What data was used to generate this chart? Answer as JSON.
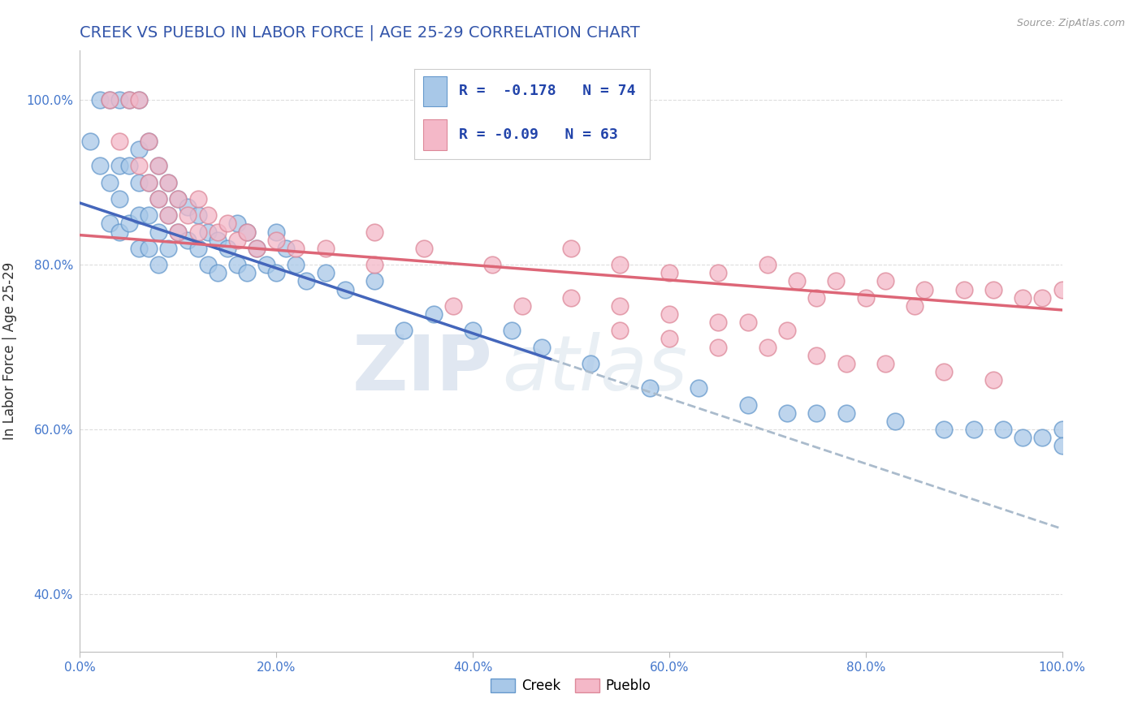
{
  "title": "CREEK VS PUEBLO IN LABOR FORCE | AGE 25-29 CORRELATION CHART",
  "source_text": "Source: ZipAtlas.com",
  "ylabel": "In Labor Force | Age 25-29",
  "background_color": "#ffffff",
  "watermark_zip": "ZIP",
  "watermark_atlas": "atlas",
  "creek_color": "#a8c8e8",
  "pueblo_color": "#f4b8c8",
  "creek_edge_color": "#6699cc",
  "pueblo_edge_color": "#dd8899",
  "creek_line_color": "#4466bb",
  "pueblo_line_color": "#dd6677",
  "dashed_line_color": "#aabbcc",
  "creek_R": -0.178,
  "creek_N": 74,
  "pueblo_R": -0.09,
  "pueblo_N": 63,
  "title_color": "#3355aa",
  "label_color": "#4477cc",
  "grid_color": "#dddddd",
  "creek_x": [
    0.01,
    0.02,
    0.02,
    0.03,
    0.03,
    0.03,
    0.04,
    0.04,
    0.04,
    0.04,
    0.05,
    0.05,
    0.05,
    0.06,
    0.06,
    0.06,
    0.06,
    0.06,
    0.07,
    0.07,
    0.07,
    0.07,
    0.08,
    0.08,
    0.08,
    0.08,
    0.09,
    0.09,
    0.09,
    0.1,
    0.1,
    0.11,
    0.11,
    0.12,
    0.12,
    0.13,
    0.13,
    0.14,
    0.14,
    0.15,
    0.16,
    0.16,
    0.17,
    0.17,
    0.18,
    0.19,
    0.2,
    0.2,
    0.21,
    0.22,
    0.23,
    0.25,
    0.27,
    0.3,
    0.33,
    0.36,
    0.4,
    0.44,
    0.47,
    0.52,
    0.58,
    0.63,
    0.68,
    0.72,
    0.75,
    0.78,
    0.83,
    0.88,
    0.91,
    0.94,
    0.96,
    0.98,
    1.0,
    1.0
  ],
  "creek_y": [
    0.95,
    1.0,
    0.92,
    1.0,
    0.9,
    0.85,
    1.0,
    0.92,
    0.88,
    0.84,
    1.0,
    0.92,
    0.85,
    1.0,
    0.94,
    0.9,
    0.86,
    0.82,
    0.95,
    0.9,
    0.86,
    0.82,
    0.92,
    0.88,
    0.84,
    0.8,
    0.9,
    0.86,
    0.82,
    0.88,
    0.84,
    0.87,
    0.83,
    0.86,
    0.82,
    0.84,
    0.8,
    0.83,
    0.79,
    0.82,
    0.85,
    0.8,
    0.84,
    0.79,
    0.82,
    0.8,
    0.84,
    0.79,
    0.82,
    0.8,
    0.78,
    0.79,
    0.77,
    0.78,
    0.72,
    0.74,
    0.72,
    0.72,
    0.7,
    0.68,
    0.65,
    0.65,
    0.63,
    0.62,
    0.62,
    0.62,
    0.61,
    0.6,
    0.6,
    0.6,
    0.59,
    0.59,
    0.6,
    0.58
  ],
  "pueblo_x": [
    0.03,
    0.04,
    0.05,
    0.06,
    0.06,
    0.07,
    0.07,
    0.08,
    0.08,
    0.09,
    0.09,
    0.1,
    0.1,
    0.11,
    0.12,
    0.12,
    0.13,
    0.14,
    0.15,
    0.16,
    0.17,
    0.18,
    0.2,
    0.22,
    0.25,
    0.3,
    0.35,
    0.42,
    0.5,
    0.55,
    0.6,
    0.65,
    0.7,
    0.73,
    0.77,
    0.82,
    0.86,
    0.9,
    0.93,
    0.96,
    0.98,
    1.0,
    0.75,
    0.8,
    0.85,
    0.5,
    0.55,
    0.6,
    0.65,
    0.68,
    0.72,
    0.3,
    0.38,
    0.45,
    0.55,
    0.6,
    0.65,
    0.7,
    0.75,
    0.78,
    0.82,
    0.88,
    0.93
  ],
  "pueblo_y": [
    1.0,
    0.95,
    1.0,
    0.92,
    1.0,
    0.9,
    0.95,
    0.88,
    0.92,
    0.86,
    0.9,
    0.88,
    0.84,
    0.86,
    0.84,
    0.88,
    0.86,
    0.84,
    0.85,
    0.83,
    0.84,
    0.82,
    0.83,
    0.82,
    0.82,
    0.84,
    0.82,
    0.8,
    0.82,
    0.8,
    0.79,
    0.79,
    0.8,
    0.78,
    0.78,
    0.78,
    0.77,
    0.77,
    0.77,
    0.76,
    0.76,
    0.77,
    0.76,
    0.76,
    0.75,
    0.76,
    0.75,
    0.74,
    0.73,
    0.73,
    0.72,
    0.8,
    0.75,
    0.75,
    0.72,
    0.71,
    0.7,
    0.7,
    0.69,
    0.68,
    0.68,
    0.67,
    0.66
  ],
  "xlim": [
    0.0,
    1.0
  ],
  "ylim": [
    0.33,
    1.06
  ],
  "creek_line_end_solid": 0.48,
  "pueblo_line_start": 0.0,
  "pueblo_line_end": 1.0
}
